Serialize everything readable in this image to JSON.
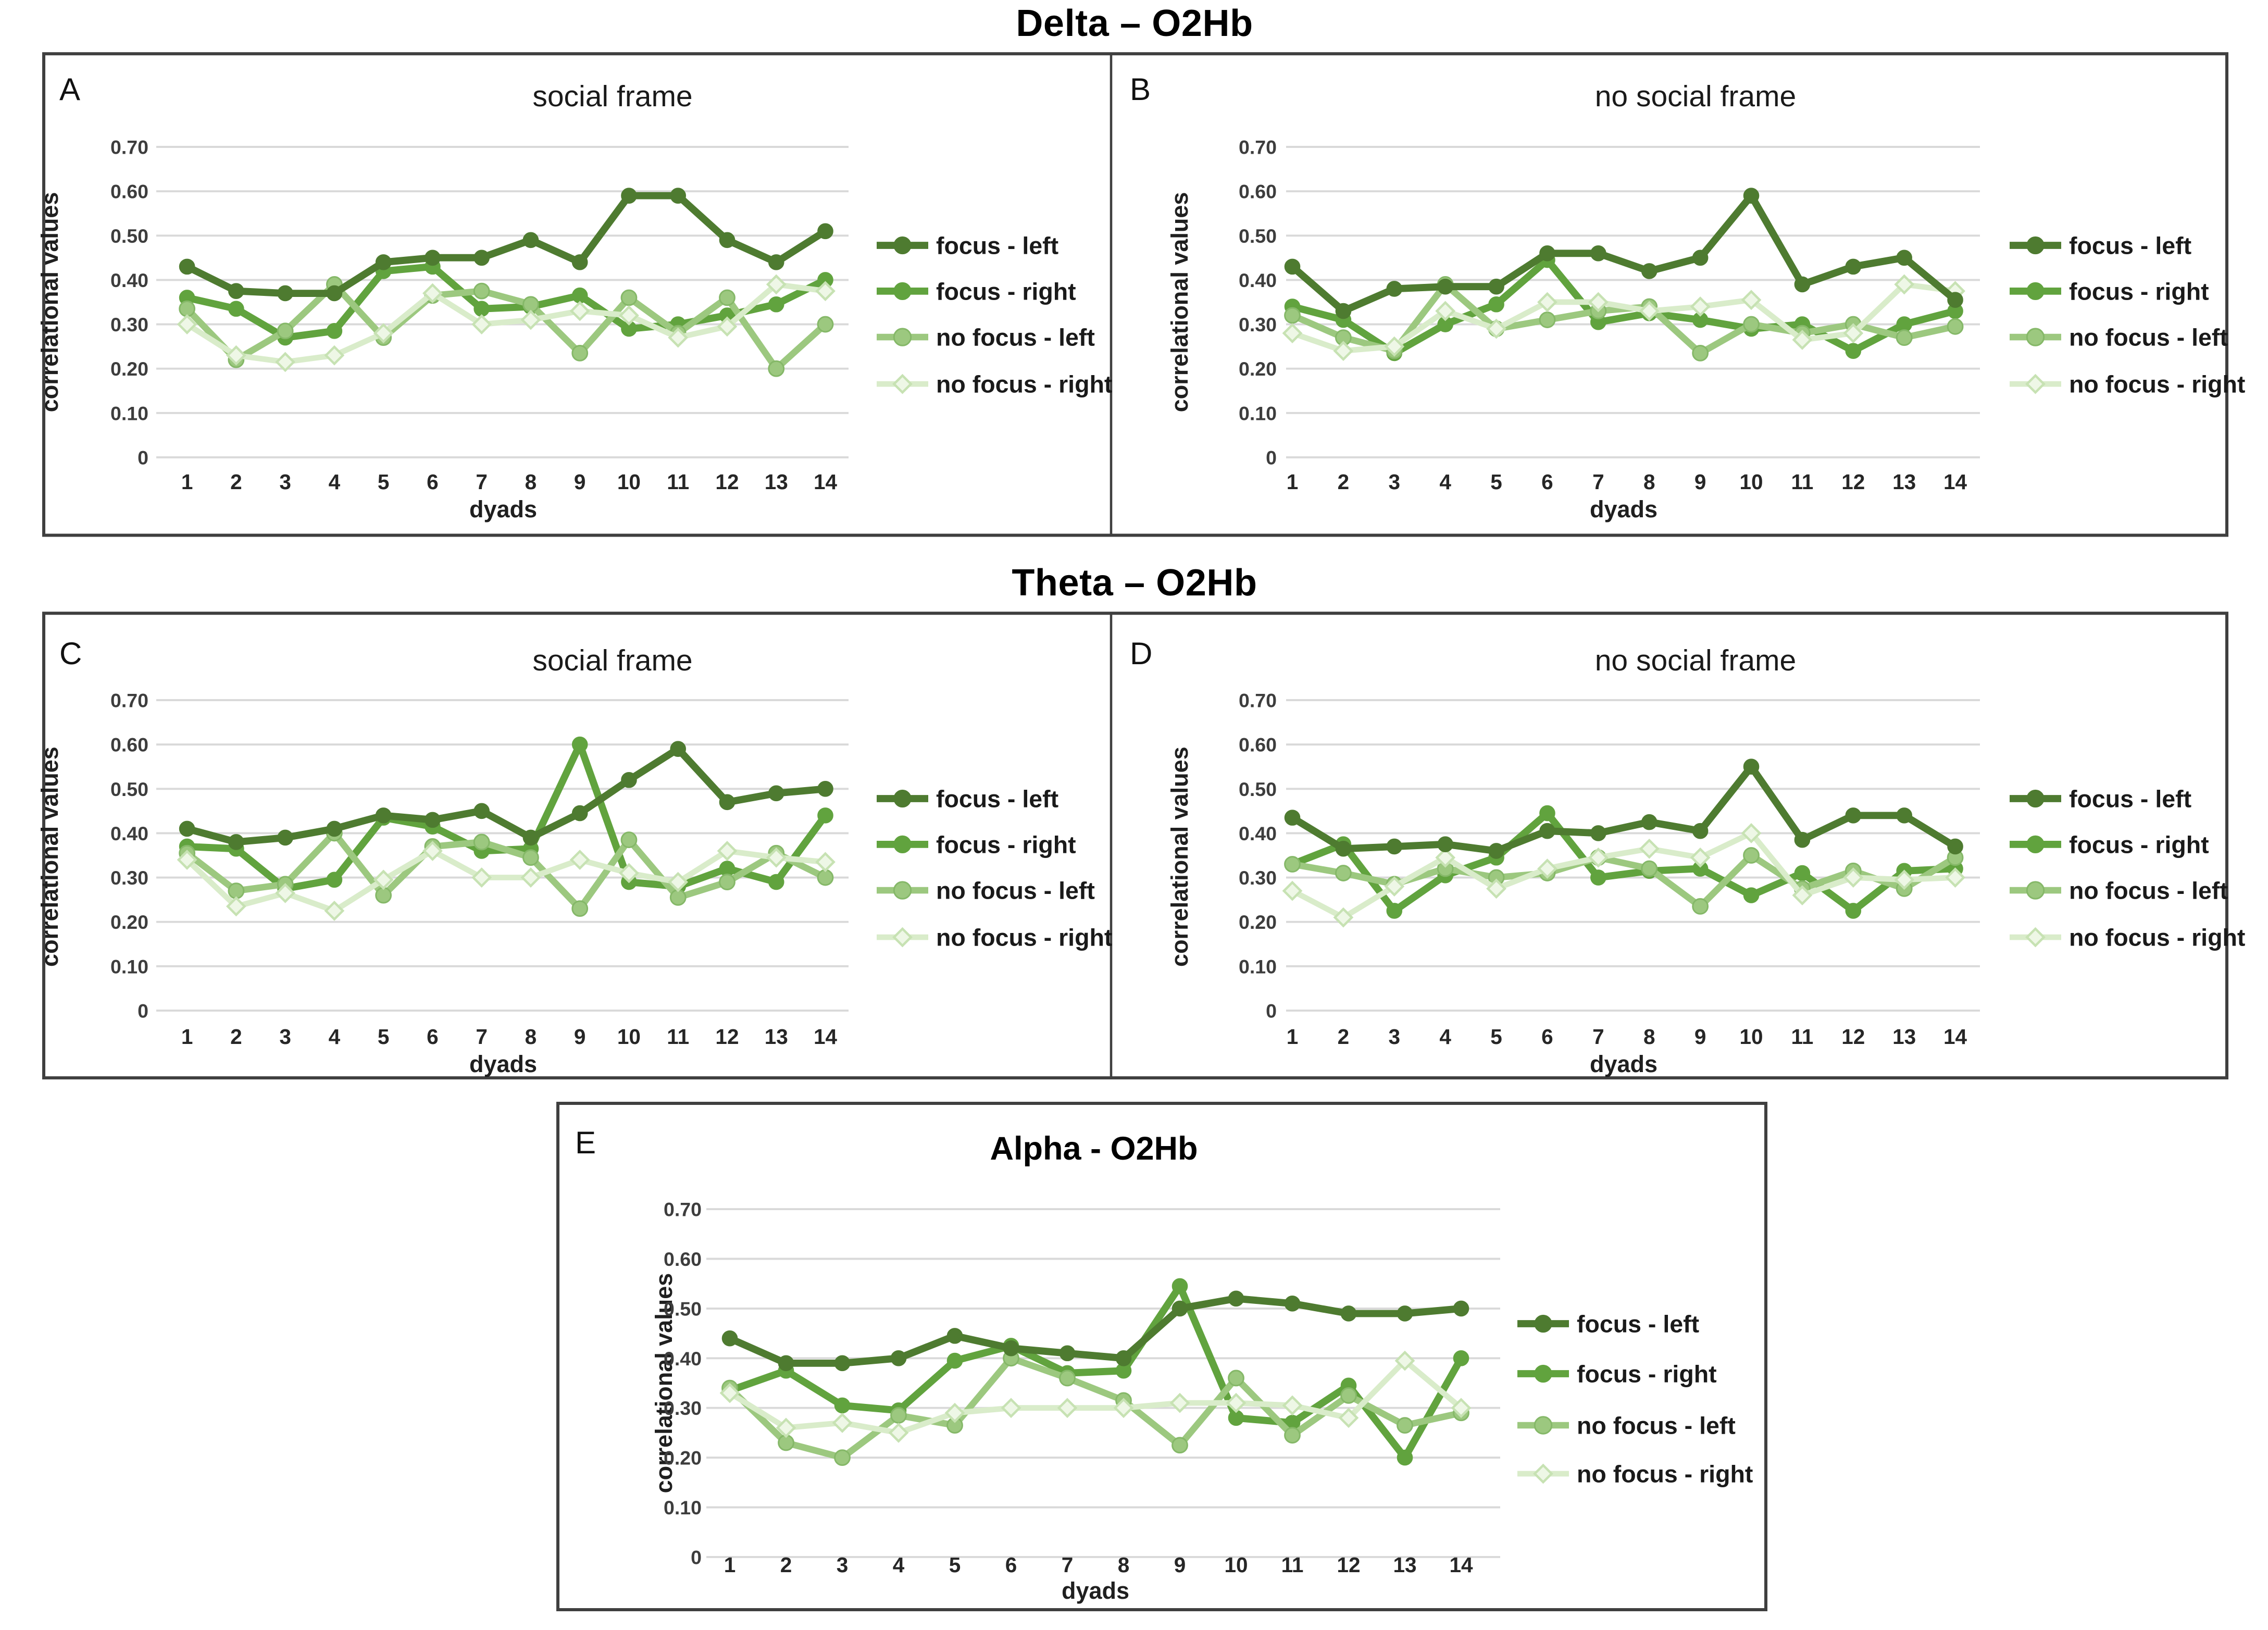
{
  "figure": {
    "section_titles": [
      "Delta – O2Hb",
      "Theta – O2Hb"
    ],
    "axis": {
      "y_label": "correlational values",
      "x_label": "dyads",
      "y_ticks": [
        "0.70",
        "0.60",
        "0.50",
        "0.40",
        "0.30",
        "0.20",
        "0.10",
        "0"
      ],
      "y_range": [
        0,
        0.7
      ]
    },
    "legend_labels": [
      "focus - left",
      "focus - right",
      "no focus - left",
      "no focus - right"
    ],
    "series_colors": {
      "focus_left": "#4e7b30",
      "focus_right": "#61a33e",
      "no_focus_left": "#9cc87f",
      "no_focus_right": "#d9ecca"
    },
    "gridline_color": "#d9d9d9",
    "border_color": "#3f3f3f"
  },
  "chart_data": [
    {
      "panel": "A",
      "band": "Delta – O2Hb",
      "title": "social frame",
      "type": "line",
      "xlabel": "dyads",
      "ylabel": "correlational values",
      "ylim": [
        0,
        0.7
      ],
      "categories": [
        1,
        2,
        3,
        4,
        5,
        6,
        7,
        8,
        9,
        10,
        11,
        12,
        13,
        14
      ],
      "legend_position": "right",
      "grid": true,
      "series": [
        {
          "name": "focus - left",
          "values": [
            0.43,
            0.375,
            0.37,
            0.37,
            0.44,
            0.45,
            0.45,
            0.49,
            0.44,
            0.59,
            0.59,
            0.49,
            0.44,
            0.51
          ]
        },
        {
          "name": "focus - right",
          "values": [
            0.36,
            0.335,
            0.27,
            0.285,
            0.42,
            0.43,
            0.335,
            0.34,
            0.365,
            0.29,
            0.3,
            0.32,
            0.345,
            0.4
          ]
        },
        {
          "name": "no focus - left",
          "values": [
            0.335,
            0.22,
            0.285,
            0.39,
            0.27,
            0.365,
            0.375,
            0.345,
            0.235,
            0.36,
            0.28,
            0.36,
            0.2,
            0.3
          ]
        },
        {
          "name": "no focus - right",
          "values": [
            0.3,
            0.23,
            0.215,
            0.23,
            0.28,
            0.37,
            0.3,
            0.31,
            0.33,
            0.32,
            0.27,
            0.295,
            0.39,
            0.375
          ]
        }
      ]
    },
    {
      "panel": "B",
      "band": "Delta – O2Hb",
      "title": "no social frame",
      "type": "line",
      "xlabel": "dyads",
      "ylabel": "correlational values",
      "ylim": [
        0,
        0.7
      ],
      "categories": [
        1,
        2,
        3,
        4,
        5,
        6,
        7,
        8,
        9,
        10,
        11,
        12,
        13,
        14
      ],
      "legend_position": "right",
      "grid": true,
      "series": [
        {
          "name": "focus - left",
          "values": [
            0.43,
            0.33,
            0.38,
            0.385,
            0.385,
            0.46,
            0.46,
            0.42,
            0.45,
            0.59,
            0.39,
            0.43,
            0.45,
            0.355
          ]
        },
        {
          "name": "focus - right",
          "values": [
            0.34,
            0.31,
            0.235,
            0.3,
            0.345,
            0.445,
            0.305,
            0.325,
            0.31,
            0.29,
            0.3,
            0.24,
            0.3,
            0.33
          ]
        },
        {
          "name": "no focus - left",
          "values": [
            0.32,
            0.27,
            0.24,
            0.39,
            0.29,
            0.31,
            0.33,
            0.34,
            0.235,
            0.3,
            0.28,
            0.3,
            0.27,
            0.295
          ]
        },
        {
          "name": "no focus - right",
          "values": [
            0.28,
            0.24,
            0.25,
            0.33,
            0.29,
            0.35,
            0.35,
            0.33,
            0.34,
            0.355,
            0.265,
            0.28,
            0.39,
            0.375
          ]
        }
      ]
    },
    {
      "panel": "C",
      "band": "Theta – O2Hb",
      "title": "social frame",
      "type": "line",
      "xlabel": "dyads",
      "ylabel": "correlational values",
      "ylim": [
        0,
        0.7
      ],
      "categories": [
        1,
        2,
        3,
        4,
        5,
        6,
        7,
        8,
        9,
        10,
        11,
        12,
        13,
        14
      ],
      "legend_position": "right",
      "grid": true,
      "series": [
        {
          "name": "focus - left",
          "values": [
            0.41,
            0.38,
            0.39,
            0.41,
            0.44,
            0.43,
            0.45,
            0.39,
            0.445,
            0.52,
            0.59,
            0.47,
            0.49,
            0.5
          ]
        },
        {
          "name": "focus - right",
          "values": [
            0.37,
            0.365,
            0.275,
            0.295,
            0.435,
            0.415,
            0.36,
            0.365,
            0.6,
            0.29,
            0.28,
            0.32,
            0.29,
            0.44
          ]
        },
        {
          "name": "no focus - left",
          "values": [
            0.355,
            0.27,
            0.285,
            0.4,
            0.26,
            0.37,
            0.38,
            0.345,
            0.23,
            0.385,
            0.255,
            0.29,
            0.355,
            0.3
          ]
        },
        {
          "name": "no focus - right",
          "values": [
            0.34,
            0.235,
            0.265,
            0.225,
            0.295,
            0.36,
            0.3,
            0.3,
            0.34,
            0.31,
            0.29,
            0.36,
            0.345,
            0.335
          ]
        }
      ]
    },
    {
      "panel": "D",
      "band": "Theta – O2Hb",
      "title": "no social frame",
      "type": "line",
      "xlabel": "dyads",
      "ylabel": "correlational values",
      "ylim": [
        0,
        0.7
      ],
      "categories": [
        1,
        2,
        3,
        4,
        5,
        6,
        7,
        8,
        9,
        10,
        11,
        12,
        13,
        14
      ],
      "legend_position": "right",
      "grid": true,
      "series": [
        {
          "name": "focus - left",
          "values": [
            0.435,
            0.365,
            0.37,
            0.375,
            0.36,
            0.405,
            0.4,
            0.425,
            0.405,
            0.55,
            0.385,
            0.44,
            0.44,
            0.37
          ]
        },
        {
          "name": "focus - right",
          "values": [
            0.33,
            0.375,
            0.225,
            0.305,
            0.345,
            0.445,
            0.3,
            0.315,
            0.32,
            0.26,
            0.31,
            0.225,
            0.315,
            0.32
          ]
        },
        {
          "name": "no focus - left",
          "values": [
            0.33,
            0.31,
            0.285,
            0.32,
            0.3,
            0.31,
            0.345,
            0.32,
            0.235,
            0.35,
            0.275,
            0.315,
            0.275,
            0.345
          ]
        },
        {
          "name": "no focus - right",
          "values": [
            0.27,
            0.21,
            0.28,
            0.345,
            0.275,
            0.32,
            0.345,
            0.365,
            0.345,
            0.4,
            0.26,
            0.3,
            0.295,
            0.3
          ]
        }
      ]
    },
    {
      "panel": "E",
      "band": "Alpha - O2Hb",
      "title": "Alpha - O2Hb",
      "type": "line",
      "xlabel": "dyads",
      "ylabel": "correlational values",
      "ylim": [
        0,
        0.7
      ],
      "categories": [
        1,
        2,
        3,
        4,
        5,
        6,
        7,
        8,
        9,
        10,
        11,
        12,
        13,
        14
      ],
      "legend_position": "right",
      "grid": true,
      "series": [
        {
          "name": "focus - left",
          "values": [
            0.44,
            0.39,
            0.39,
            0.4,
            0.445,
            0.42,
            0.41,
            0.4,
            0.5,
            0.52,
            0.51,
            0.49,
            0.49,
            0.5
          ]
        },
        {
          "name": "focus - right",
          "values": [
            0.335,
            0.375,
            0.305,
            0.295,
            0.395,
            0.425,
            0.37,
            0.375,
            0.545,
            0.28,
            0.27,
            0.345,
            0.2,
            0.4
          ]
        },
        {
          "name": "no focus - left",
          "values": [
            0.34,
            0.23,
            0.2,
            0.285,
            0.265,
            0.4,
            0.36,
            0.315,
            0.225,
            0.36,
            0.245,
            0.325,
            0.265,
            0.29
          ]
        },
        {
          "name": "no focus - right",
          "values": [
            0.33,
            0.26,
            0.27,
            0.25,
            0.29,
            0.3,
            0.3,
            0.3,
            0.31,
            0.31,
            0.305,
            0.28,
            0.395,
            0.3
          ]
        }
      ]
    }
  ]
}
